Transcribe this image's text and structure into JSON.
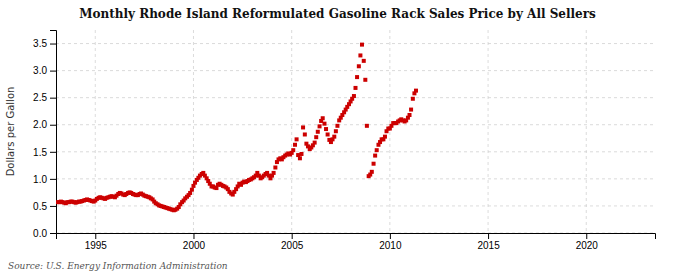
{
  "chart_data": {
    "type": "scatter",
    "title": "Monthly Rhode Island Reformulated Gasoline Rack Sales Price by All Sellers",
    "ylabel": "Dollars per Gallon",
    "source": "Source: U.S. Energy Information Administration",
    "xlim": [
      1993.0,
      2023.5
    ],
    "ylim": [
      0.0,
      3.75
    ],
    "xticks": [
      1995,
      2000,
      2005,
      2010,
      2015,
      2020
    ],
    "yticks": [
      {
        "value": 0.0,
        "label": "0.0"
      },
      0.5,
      {
        "value": 1.0,
        "label": "1.0"
      },
      1.5,
      {
        "value": 2.0,
        "label": "2.0"
      },
      2.5,
      {
        "value": 3.0,
        "label": "3.0"
      },
      3.5
    ],
    "grid": true,
    "color": "#cc0000",
    "marker": "square",
    "x": [
      1993.08,
      1993.17,
      1993.25,
      1993.33,
      1993.42,
      1993.5,
      1993.58,
      1993.67,
      1993.75,
      1993.83,
      1993.92,
      1994.0,
      1994.08,
      1994.17,
      1994.25,
      1994.33,
      1994.42,
      1994.5,
      1994.58,
      1994.67,
      1994.75,
      1994.83,
      1994.92,
      1995.0,
      1995.08,
      1995.17,
      1995.25,
      1995.33,
      1995.42,
      1995.5,
      1995.58,
      1995.67,
      1995.75,
      1995.83,
      1995.92,
      1996.0,
      1996.08,
      1996.17,
      1996.25,
      1996.33,
      1996.42,
      1996.5,
      1996.58,
      1996.67,
      1996.75,
      1996.83,
      1996.92,
      1997.0,
      1997.08,
      1997.17,
      1997.25,
      1997.33,
      1997.42,
      1997.5,
      1997.58,
      1997.67,
      1997.75,
      1997.83,
      1997.92,
      1998.0,
      1998.08,
      1998.17,
      1998.25,
      1998.33,
      1998.42,
      1998.5,
      1998.58,
      1998.67,
      1998.75,
      1998.83,
      1998.92,
      1999.0,
      1999.08,
      1999.17,
      1999.25,
      1999.33,
      1999.42,
      1999.5,
      1999.58,
      1999.67,
      1999.75,
      1999.83,
      1999.92,
      2000.0,
      2000.08,
      2000.17,
      2000.25,
      2000.33,
      2000.42,
      2000.5,
      2000.58,
      2000.67,
      2000.75,
      2000.83,
      2000.92,
      2001.0,
      2001.08,
      2001.17,
      2001.25,
      2001.33,
      2001.42,
      2001.5,
      2001.58,
      2001.67,
      2001.75,
      2001.83,
      2001.92,
      2002.0,
      2002.08,
      2002.17,
      2002.25,
      2002.33,
      2002.42,
      2002.5,
      2002.58,
      2002.67,
      2002.75,
      2002.83,
      2002.92,
      2003.0,
      2003.08,
      2003.17,
      2003.25,
      2003.33,
      2003.42,
      2003.5,
      2003.58,
      2003.67,
      2003.75,
      2003.83,
      2003.92,
      2004.0,
      2004.08,
      2004.17,
      2004.25,
      2004.33,
      2004.42,
      2004.5,
      2004.58,
      2004.67,
      2004.75,
      2004.83,
      2004.92,
      2005.0,
      2005.08,
      2005.17,
      2005.25,
      2005.33,
      2005.42,
      2005.5,
      2005.58,
      2005.67,
      2005.75,
      2005.83,
      2005.92,
      2006.0,
      2006.08,
      2006.17,
      2006.25,
      2006.33,
      2006.42,
      2006.5,
      2006.58,
      2006.67,
      2006.75,
      2006.83,
      2006.92,
      2007.0,
      2007.08,
      2007.17,
      2007.25,
      2007.33,
      2007.42,
      2007.5,
      2007.58,
      2007.67,
      2007.75,
      2007.83,
      2007.92,
      2008.0,
      2008.08,
      2008.17,
      2008.25,
      2008.33,
      2008.42,
      2008.5,
      2008.58,
      2008.67,
      2008.75,
      2008.83,
      2008.92,
      2009.0,
      2009.08,
      2009.17,
      2009.25,
      2009.33,
      2009.42,
      2009.5,
      2009.58,
      2009.67,
      2009.75,
      2009.83,
      2009.92,
      2010.0,
      2010.08,
      2010.17,
      2010.25,
      2010.33,
      2010.42,
      2010.5,
      2010.58,
      2010.67,
      2010.75,
      2010.83,
      2010.92,
      2011.0,
      2011.08,
      2011.17,
      2011.25,
      2011.33
    ],
    "values": [
      0.57,
      0.57,
      0.58,
      0.57,
      0.56,
      0.55,
      0.57,
      0.57,
      0.58,
      0.58,
      0.57,
      0.56,
      0.57,
      0.58,
      0.58,
      0.59,
      0.6,
      0.61,
      0.62,
      0.61,
      0.6,
      0.59,
      0.58,
      0.6,
      0.63,
      0.65,
      0.66,
      0.65,
      0.64,
      0.63,
      0.65,
      0.66,
      0.67,
      0.68,
      0.67,
      0.66,
      0.69,
      0.72,
      0.74,
      0.73,
      0.71,
      0.7,
      0.72,
      0.74,
      0.75,
      0.74,
      0.72,
      0.71,
      0.7,
      0.7,
      0.72,
      0.73,
      0.71,
      0.69,
      0.68,
      0.67,
      0.66,
      0.64,
      0.62,
      0.58,
      0.55,
      0.53,
      0.51,
      0.5,
      0.49,
      0.48,
      0.47,
      0.46,
      0.45,
      0.44,
      0.43,
      0.42,
      0.43,
      0.45,
      0.48,
      0.53,
      0.57,
      0.6,
      0.64,
      0.67,
      0.7,
      0.74,
      0.8,
      0.87,
      0.93,
      0.98,
      1.02,
      1.06,
      1.09,
      1.11,
      1.06,
      1.01,
      0.96,
      0.91,
      0.86,
      0.86,
      0.84,
      0.83,
      0.89,
      0.91,
      0.89,
      0.87,
      0.86,
      0.84,
      0.81,
      0.76,
      0.73,
      0.71,
      0.76,
      0.81,
      0.86,
      0.91,
      0.89,
      0.93,
      0.95,
      0.94,
      0.96,
      0.98,
      0.99,
      1.01,
      1.03,
      1.06,
      1.11,
      1.06,
      1.01,
      1.03,
      1.06,
      1.09,
      1.11,
      1.06,
      1.01,
      1.06,
      1.11,
      1.21,
      1.31,
      1.36,
      1.38,
      1.36,
      1.4,
      1.43,
      1.45,
      1.47,
      1.45,
      1.48,
      1.53,
      1.63,
      1.73,
      1.44,
      1.38,
      1.46,
      1.95,
      1.82,
      1.65,
      1.6,
      1.55,
      1.58,
      1.62,
      1.67,
      1.77,
      1.87,
      1.97,
      2.07,
      2.12,
      2.02,
      1.92,
      1.82,
      1.72,
      1.68,
      1.73,
      1.78,
      1.88,
      1.98,
      2.08,
      2.13,
      2.18,
      2.23,
      2.28,
      2.33,
      2.38,
      2.43,
      2.48,
      2.53,
      2.68,
      2.88,
      3.08,
      3.28,
      3.48,
      3.18,
      2.83,
      1.98,
      1.05,
      1.08,
      1.13,
      1.28,
      1.43,
      1.53,
      1.63,
      1.68,
      1.73,
      1.73,
      1.78,
      1.88,
      1.93,
      1.93,
      1.98,
      2.03,
      2.03,
      2.03,
      2.06,
      2.08,
      2.1,
      2.08,
      2.06,
      2.08,
      2.13,
      2.18,
      2.28,
      2.48,
      2.58,
      2.63
    ]
  }
}
